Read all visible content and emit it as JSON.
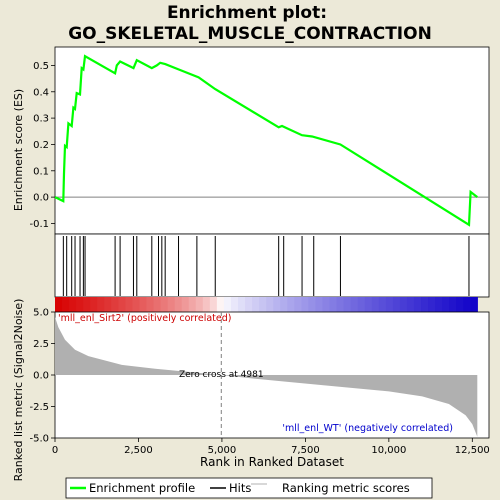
{
  "chart_data": {
    "type": "line",
    "title_line1": "Enrichment plot:",
    "title_line2": "GO_SKELETAL_MUSCLE_CONTRACTION",
    "es_panel": {
      "ylabel": "Enrichment score (ES)",
      "ylim": [
        -0.14,
        0.57
      ],
      "yticks": [
        -0.1,
        0.0,
        0.1,
        0.2,
        0.3,
        0.4,
        0.5
      ],
      "ytick_labels": [
        "-0.1",
        "0.0",
        "0.1",
        "0.2",
        "0.3",
        "0.4",
        "0.5"
      ],
      "line_color": "#00ff00",
      "x": [
        0,
        250,
        270,
        300,
        350,
        400,
        500,
        550,
        600,
        650,
        750,
        800,
        850,
        900,
        1800,
        1850,
        1950,
        2350,
        2450,
        2900,
        3050,
        3150,
        3300,
        3700,
        4300,
        4800,
        6700,
        6800,
        7400,
        7700,
        8550,
        12400,
        12450,
        12650
      ],
      "y": [
        0.0,
        -0.015,
        0.09,
        0.195,
        0.19,
        0.28,
        0.27,
        0.34,
        0.335,
        0.395,
        0.39,
        0.49,
        0.485,
        0.535,
        0.47,
        0.5,
        0.515,
        0.49,
        0.52,
        0.49,
        0.5,
        0.51,
        0.505,
        0.485,
        0.455,
        0.41,
        0.265,
        0.27,
        0.235,
        0.23,
        0.2,
        -0.105,
        0.02,
        0.0
      ]
    },
    "hits_panel": {
      "hit_positions": [
        250,
        350,
        500,
        600,
        750,
        850,
        900,
        1800,
        1950,
        2350,
        2450,
        2900,
        3100,
        3200,
        3300,
        3700,
        4250,
        4800,
        6700,
        6850,
        7400,
        7750,
        8550,
        12400
      ]
    },
    "metric_panel": {
      "ylabel": "Ranked list metric (Signal2Noise)",
      "ylim": [
        -5.0,
        5.0
      ],
      "yticks": [
        -5.0,
        -2.5,
        0.0,
        2.5,
        5.0
      ],
      "ytick_labels": [
        "-5.0",
        "-2.5",
        "0.0",
        "2.5",
        "5.0"
      ],
      "x": [
        0,
        100,
        300,
        600,
        1000,
        2000,
        3000,
        4000,
        4981,
        6000,
        8000,
        10000,
        11000,
        11800,
        12300,
        12500,
        12650
      ],
      "y": [
        4.6,
        3.8,
        2.8,
        2.0,
        1.5,
        0.8,
        0.5,
        0.25,
        0.0,
        -0.3,
        -0.8,
        -1.3,
        -1.7,
        -2.3,
        -3.2,
        -3.9,
        -4.9
      ],
      "zero_cross_label": "Zero cross at 4981",
      "zero_cross_x": 4981,
      "positive_label": "'mll_enl_Sirt2' (positively correlated)",
      "negative_label": "'mll_enl_WT' (negatively correlated)",
      "positive_label_color": "#cc0000",
      "negative_label_color": "#0000cc"
    },
    "xlabel": "Rank in Ranked Dataset",
    "xlim": [
      0,
      13000
    ],
    "xticks": [
      0,
      2500,
      5000,
      7500,
      10000,
      12500
    ],
    "xtick_labels": [
      "0",
      "2,500",
      "5,000",
      "7,500",
      "10,000",
      "12,500"
    ],
    "n_ranks": 12650,
    "legend": {
      "items": [
        {
          "label": "Enrichment profile",
          "color": "#00ff00",
          "kind": "thick-line"
        },
        {
          "label": "Hits",
          "color": "#000000",
          "kind": "thin-line"
        },
        {
          "label": "Ranking metric scores",
          "color": "#b0b0b0",
          "kind": "thin-line"
        }
      ]
    }
  }
}
